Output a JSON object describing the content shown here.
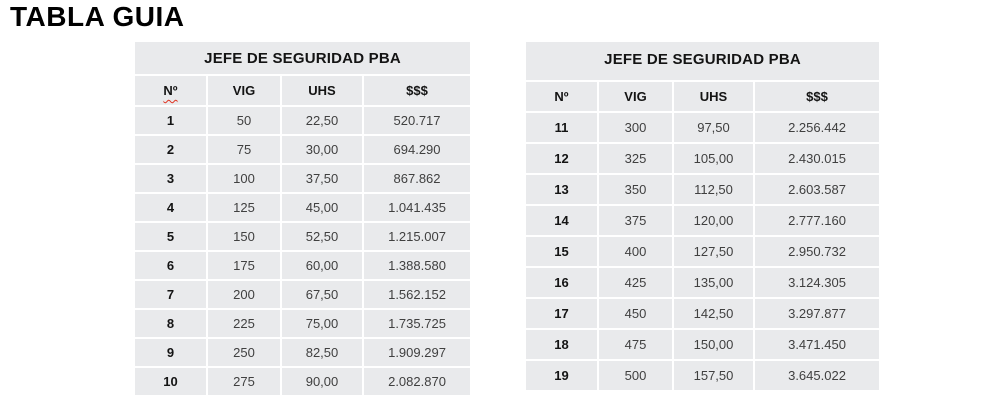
{
  "page_title": "TABLA GUIA",
  "colors": {
    "background": "#ffffff",
    "table_cell_bg": "#e9eaec",
    "grid_line": "#ffffff",
    "heading_text": "#000000",
    "header_text": "#141414",
    "data_text": "#404040",
    "spellcheck_underline": "#e0301e"
  },
  "tables": [
    {
      "name": "left",
      "title": "JEFE DE SEGURIDAD PBA",
      "columns": [
        "Nº",
        "VIG",
        "UHS",
        "$$$"
      ],
      "spellcheck_underline_column": 0,
      "rows": [
        [
          "1",
          "50",
          "22,50",
          "520.717"
        ],
        [
          "2",
          "75",
          "30,00",
          "694.290"
        ],
        [
          "3",
          "100",
          "37,50",
          "867.862"
        ],
        [
          "4",
          "125",
          "45,00",
          "1.041.435"
        ],
        [
          "5",
          "150",
          "52,50",
          "1.215.007"
        ],
        [
          "6",
          "175",
          "60,00",
          "1.388.580"
        ],
        [
          "7",
          "200",
          "67,50",
          "1.562.152"
        ],
        [
          "8",
          "225",
          "75,00",
          "1.735.725"
        ],
        [
          "9",
          "250",
          "82,50",
          "1.909.297"
        ],
        [
          "10",
          "275",
          "90,00",
          "2.082.870"
        ]
      ]
    },
    {
      "name": "right",
      "title": "JEFE DE SEGURIDAD PBA",
      "columns": [
        "Nº",
        "VIG",
        "UHS",
        "$$$"
      ],
      "spellcheck_underline_column": null,
      "rows": [
        [
          "11",
          "300",
          "97,50",
          "2.256.442"
        ],
        [
          "12",
          "325",
          "105,00",
          "2.430.015"
        ],
        [
          "13",
          "350",
          "112,50",
          "2.603.587"
        ],
        [
          "14",
          "375",
          "120,00",
          "2.777.160"
        ],
        [
          "15",
          "400",
          "127,50",
          "2.950.732"
        ],
        [
          "16",
          "425",
          "135,00",
          "3.124.305"
        ],
        [
          "17",
          "450",
          "142,50",
          "3.297.877"
        ],
        [
          "18",
          "475",
          "150,00",
          "3.471.450"
        ],
        [
          "19",
          "500",
          "157,50",
          "3.645.022"
        ]
      ]
    }
  ]
}
